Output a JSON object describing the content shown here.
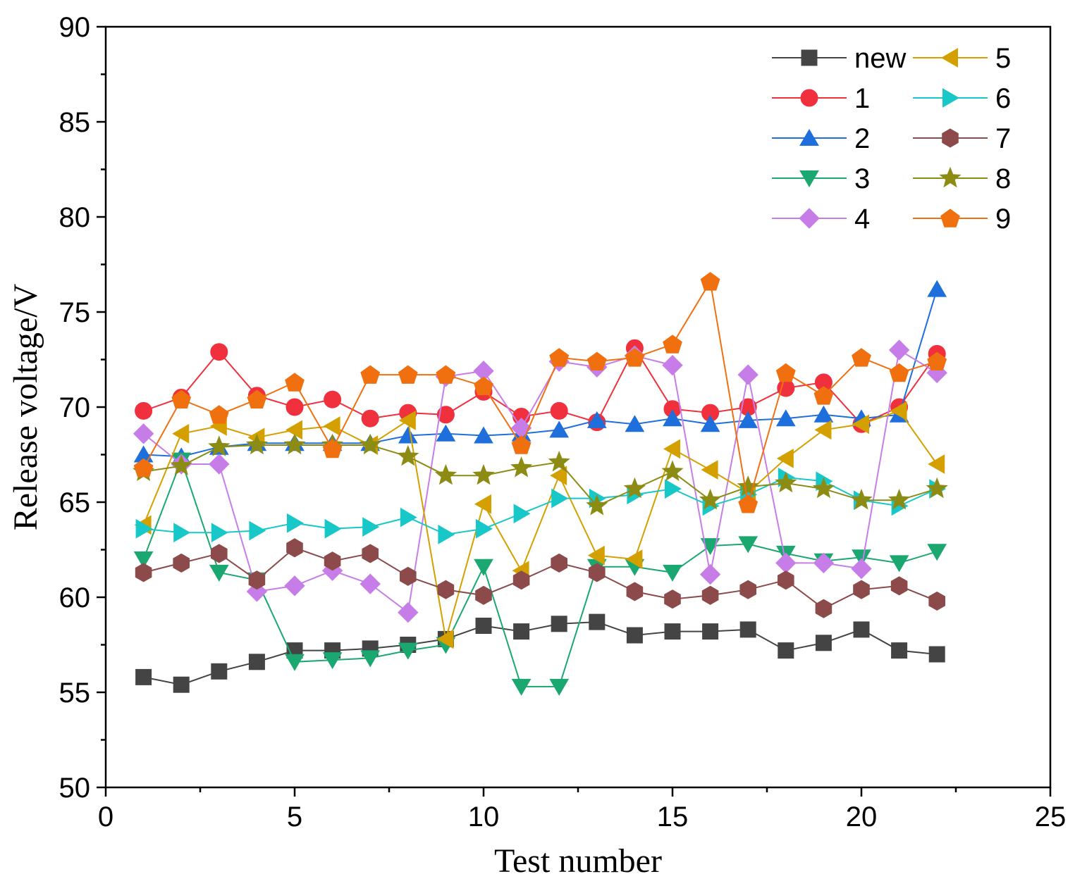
{
  "chart_data": {
    "type": "line",
    "title": "",
    "xlabel": "Test number",
    "ylabel": "Release voltage/V",
    "xlim": [
      0,
      25
    ],
    "ylim": [
      50,
      90
    ],
    "xticks": [
      0,
      5,
      10,
      15,
      20,
      25
    ],
    "yticks": [
      50,
      55,
      60,
      65,
      70,
      75,
      80,
      85,
      90
    ],
    "grid": false,
    "legend_position": "top-right",
    "x": [
      1,
      2,
      3,
      4,
      5,
      6,
      7,
      8,
      9,
      10,
      11,
      12,
      13,
      14,
      15,
      16,
      17,
      18,
      19,
      20,
      21,
      22
    ],
    "series": [
      {
        "name": "new",
        "color": "#444444",
        "marker": "square",
        "values": [
          55.8,
          55.4,
          56.1,
          56.6,
          57.2,
          57.2,
          57.3,
          57.5,
          57.8,
          58.5,
          58.2,
          58.6,
          58.7,
          58.0,
          58.2,
          58.2,
          58.3,
          57.2,
          57.6,
          58.3,
          57.2,
          57.0
        ]
      },
      {
        "name": "1",
        "color": "#f0303c",
        "marker": "circle",
        "values": [
          69.8,
          70.5,
          72.9,
          70.6,
          70.0,
          70.4,
          69.4,
          69.7,
          69.6,
          70.8,
          69.5,
          69.8,
          69.2,
          73.1,
          69.9,
          69.7,
          70.0,
          71.0,
          71.3,
          69.1,
          70.0,
          72.8
        ]
      },
      {
        "name": "2",
        "color": "#1e6fdc",
        "marker": "triangle-up",
        "values": [
          67.5,
          67.4,
          67.9,
          68.1,
          68.1,
          68.1,
          68.1,
          68.5,
          68.6,
          68.5,
          68.6,
          68.8,
          69.3,
          69.1,
          69.4,
          69.1,
          69.3,
          69.4,
          69.6,
          69.4,
          69.6,
          76.2
        ]
      },
      {
        "name": "3",
        "color": "#1aa870",
        "marker": "triangle-down",
        "values": [
          62.0,
          67.2,
          61.3,
          60.9,
          56.6,
          56.7,
          56.8,
          57.2,
          57.5,
          61.6,
          55.3,
          55.3,
          61.6,
          61.6,
          61.3,
          62.7,
          62.8,
          62.3,
          61.9,
          62.1,
          61.8,
          62.4
        ]
      },
      {
        "name": "4",
        "color": "#c77de8",
        "marker": "diamond",
        "values": [
          68.6,
          67.0,
          67.0,
          60.3,
          60.6,
          61.4,
          60.7,
          59.2,
          71.6,
          71.9,
          68.9,
          72.4,
          72.1,
          72.7,
          72.2,
          61.2,
          71.7,
          61.8,
          61.8,
          61.5,
          73.0,
          71.8
        ]
      },
      {
        "name": "5",
        "color": "#d4a000",
        "marker": "triangle-left",
        "values": [
          63.8,
          68.6,
          69.0,
          68.4,
          68.8,
          69.0,
          68.0,
          69.3,
          57.8,
          64.9,
          61.4,
          66.4,
          62.2,
          62.0,
          67.8,
          66.7,
          65.5,
          67.3,
          68.8,
          69.1,
          69.8,
          67.0
        ]
      },
      {
        "name": "6",
        "color": "#18c8c8",
        "marker": "triangle-right",
        "values": [
          63.6,
          63.4,
          63.4,
          63.5,
          63.9,
          63.6,
          63.7,
          64.2,
          63.3,
          63.6,
          64.4,
          65.2,
          65.2,
          65.4,
          65.7,
          64.8,
          65.4,
          66.3,
          66.1,
          65.1,
          64.8,
          65.7
        ]
      },
      {
        "name": "7",
        "color": "#8c4a4a",
        "marker": "hexagon",
        "values": [
          61.3,
          61.8,
          62.3,
          60.9,
          62.6,
          61.9,
          62.3,
          61.1,
          60.4,
          60.1,
          60.9,
          61.8,
          61.3,
          60.3,
          59.9,
          60.1,
          60.4,
          60.9,
          59.4,
          60.4,
          60.6,
          59.8
        ]
      },
      {
        "name": "8",
        "color": "#8c8c14",
        "marker": "star",
        "values": [
          66.6,
          66.9,
          67.9,
          68.0,
          68.0,
          68.0,
          68.0,
          67.4,
          66.4,
          66.4,
          66.8,
          67.1,
          64.8,
          65.7,
          66.6,
          65.1,
          65.8,
          66.0,
          65.7,
          65.1,
          65.1,
          65.7
        ]
      },
      {
        "name": "9",
        "color": "#f07010",
        "marker": "pentagon",
        "values": [
          66.8,
          70.4,
          69.6,
          70.4,
          71.3,
          67.8,
          71.7,
          71.7,
          71.7,
          71.1,
          68.0,
          72.6,
          72.4,
          72.6,
          73.3,
          76.6,
          64.9,
          71.8,
          70.6,
          72.6,
          71.8,
          72.4
        ]
      }
    ]
  }
}
